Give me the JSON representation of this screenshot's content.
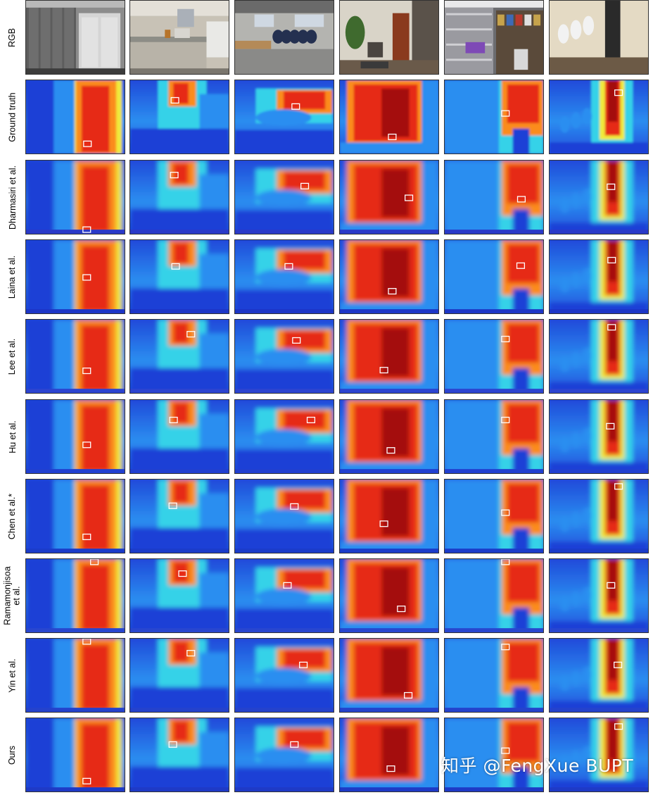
{
  "figure": {
    "rows": [
      {
        "label": "RGB"
      },
      {
        "label": "Ground truth"
      },
      {
        "label": "Dharmasiri et al."
      },
      {
        "label": "Laina et al."
      },
      {
        "label": "Lee et al."
      },
      {
        "label": "Hu et al."
      },
      {
        "label": "Chen et al.*"
      },
      {
        "label": "Ramamonjisoa\net al."
      },
      {
        "label": "Yin et al."
      },
      {
        "label": "Ours"
      }
    ],
    "scenes": [
      "hallway-doors",
      "kitchen",
      "office",
      "living-room",
      "storage-shelves",
      "restroom"
    ],
    "colormap": "jet",
    "watermark": "知乎 @FengXue BUPT"
  }
}
